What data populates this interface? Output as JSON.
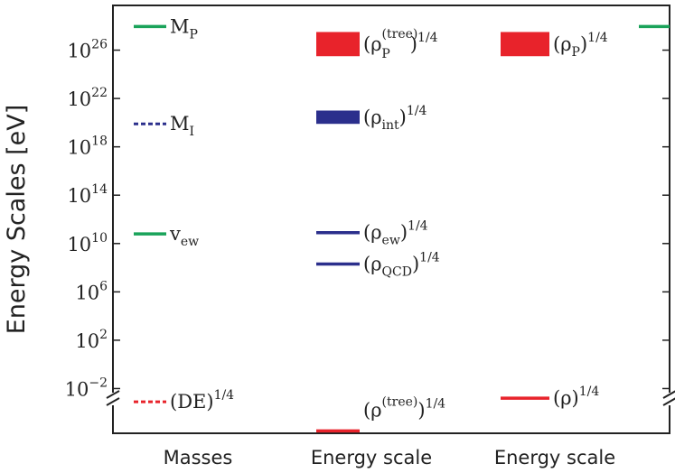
{
  "chart_data": {
    "type": "range-chart",
    "ylabel": "Energy Scales [eV]",
    "yscale": "log10",
    "yticks": [
      {
        "exp": 26,
        "base": "10",
        "sup": "26"
      },
      {
        "exp": 22,
        "base": "10",
        "sup": "22"
      },
      {
        "exp": 18,
        "base": "10",
        "sup": "18"
      },
      {
        "exp": 14,
        "base": "10",
        "sup": "14"
      },
      {
        "exp": 10,
        "base": "10",
        "sup": "10"
      },
      {
        "exp": 6,
        "base": "10",
        "sup": "6"
      },
      {
        "exp": 2,
        "base": "10",
        "sup": "2"
      },
      {
        "exp": -2,
        "base": "10",
        "sup": "−2"
      }
    ],
    "ylim_exp": [
      -5.7,
      29.7
    ],
    "categories": [
      "Masses",
      "Energy scale",
      "Energy scale"
    ],
    "marks": [
      {
        "col": 0,
        "kind": "line",
        "style": "solid",
        "color": "#1aa35a",
        "exp": 27.95,
        "label": {
          "main": "M",
          "sub": "P"
        }
      },
      {
        "col": 0,
        "kind": "line",
        "style": "dashed",
        "color": "#2b2f8c",
        "exp": 19.9,
        "label": {
          "main": "M",
          "sub": "I"
        }
      },
      {
        "col": 0,
        "kind": "line",
        "style": "solid",
        "color": "#1aa35a",
        "exp": 10.8,
        "label": {
          "main": "v",
          "sub": "ew"
        }
      },
      {
        "col": 0,
        "kind": "line",
        "style": "dashed",
        "color": "#e8232b",
        "exp": -3.1,
        "label": {
          "main": "(DE)",
          "sup": "1/4"
        }
      },
      {
        "col": 1,
        "kind": "band",
        "color": "#e8232b",
        "exp_low": 25.5,
        "exp_high": 27.5,
        "label": {
          "main": "(ρ",
          "sub": "P",
          "sup2": "(tree)",
          "tail": ")",
          "sup": "1/4"
        }
      },
      {
        "col": 1,
        "kind": "band",
        "color": "#2b2f8c",
        "exp_low": 19.9,
        "exp_high": 21.0,
        "label": {
          "main": "(ρ",
          "sub": "int",
          "tail": ")",
          "sup": "1/4"
        }
      },
      {
        "col": 1,
        "kind": "line",
        "style": "solid",
        "color": "#2b2f8c",
        "exp": 10.9,
        "label": {
          "main": "(ρ",
          "sub": "ew",
          "tail": ")",
          "sup": "1/4"
        }
      },
      {
        "col": 1,
        "kind": "line",
        "style": "solid",
        "color": "#2b2f8c",
        "exp": 8.3,
        "label": {
          "main": "(ρ",
          "sub": "QCD",
          "tail": ")",
          "sup": "1/4"
        }
      },
      {
        "col": 1,
        "kind": "line",
        "style": "solid",
        "color": "#e8232b",
        "exp": -5.5,
        "label": {
          "main": "(ρ",
          "sup2": "(tree)",
          "tail": ")",
          "sup": "1/4"
        }
      },
      {
        "col": 2,
        "kind": "band",
        "color": "#e8232b",
        "exp_low": 25.5,
        "exp_high": 27.5,
        "label": {
          "main": "(ρ",
          "sub": "P",
          "tail": ")",
          "sup": "1/4"
        }
      },
      {
        "col": 2,
        "kind": "line",
        "style": "solid",
        "color": "#e8232b",
        "exp": -2.8,
        "label": {
          "main": "(ρ)",
          "sup": "1/4"
        }
      },
      {
        "col": 3,
        "kind": "line",
        "style": "solid",
        "color": "#1aa35a",
        "exp": 27.95
      }
    ]
  }
}
